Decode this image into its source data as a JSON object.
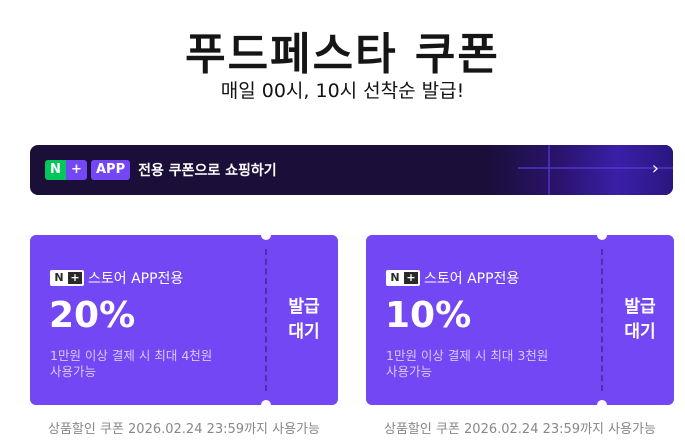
{
  "header": {
    "title": "푸드페스타 쿠폰",
    "subtitle": "매일 00시, 10시 선착순 발급!"
  },
  "banner": {
    "n_label": "N",
    "plus_label": "+",
    "app_label": "APP",
    "text": "전용 쿠폰으로 쇼핑하기",
    "chevron": "›"
  },
  "coupons": [
    {
      "badge_n": "N",
      "badge_plus": "+",
      "label": "스토어 APP전용",
      "discount": "20%",
      "condition_line1": "1만원 이상 결제 시 최대 4천원",
      "condition_line2": "사용가능",
      "state_line1": "발급",
      "state_line2": "대기",
      "footer": "상품할인 쿠폰 2026.02.24 23:59까지 사용가능"
    },
    {
      "badge_n": "N",
      "badge_plus": "+",
      "label": "스토어 APP전용",
      "discount": "10%",
      "condition_line1": "1만원 이상 결제 시 최대 3천원",
      "condition_line2": "사용가능",
      "state_line1": "발급",
      "state_line2": "대기",
      "footer": "상품할인 쿠폰 2026.02.24 23:59까지 사용가능"
    }
  ],
  "colors": {
    "accent": "#7447f5",
    "banner_bg": "#1b0f3a",
    "naver_green": "#03c75a"
  }
}
